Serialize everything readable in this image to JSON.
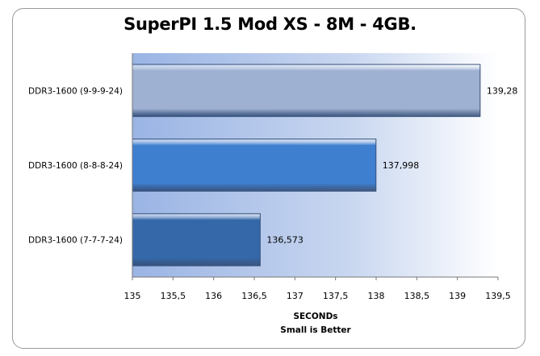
{
  "chart_data": {
    "type": "bar",
    "orientation": "horizontal",
    "title": "SuperPI 1.5 Mod XS - 8M - 4GB.",
    "categories": [
      "DDR3-1600 (9-9-9-24)",
      "DDR3-1600 (8-8-8-24)",
      "DDR3-1600 (7-7-7-24)"
    ],
    "values": [
      139.28,
      137.998,
      136.573
    ],
    "data_labels": [
      "139,28",
      "137,998",
      "136,573"
    ],
    "xlabel": "SECONDs",
    "xlabel_sub": "Small  is Better",
    "xlim": [
      135,
      139.5
    ],
    "xticks": [
      "135",
      "135,5",
      "136",
      "136,5",
      "137",
      "137,5",
      "138",
      "138,5",
      "139",
      "139,5"
    ],
    "grid": false,
    "legend": "none",
    "colors": {
      "bars": [
        "#9fb1d2",
        "#3f7fcf",
        "#3568a8"
      ],
      "plot_background_left": "#9ab4e4",
      "plot_background_right": "#ffffff"
    }
  }
}
